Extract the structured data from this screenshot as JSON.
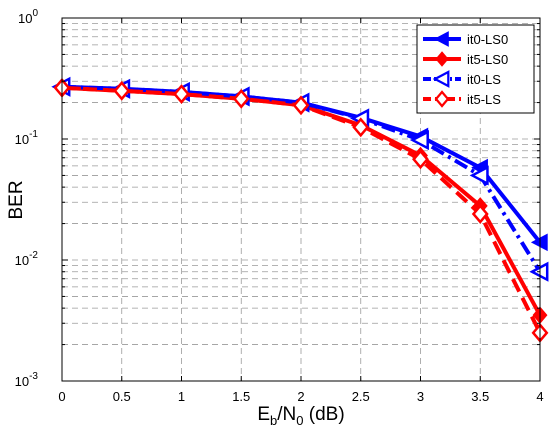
{
  "chart_data": {
    "type": "line",
    "title": "",
    "xlabel": {
      "base": "E",
      "sub1": "b",
      "mid": "/N",
      "sub2": "0",
      "tail": " (dB)"
    },
    "ylabel": "BER",
    "x": [
      0,
      0.5,
      1,
      1.5,
      2,
      2.5,
      3,
      3.5,
      4
    ],
    "xlim": [
      0,
      4
    ],
    "ylim": [
      0.001,
      1
    ],
    "yscale": "log",
    "grid": true,
    "legend_position": "top-right",
    "xticks": [
      "0",
      "0.5",
      "1",
      "1.5",
      "2",
      "2.5",
      "3",
      "3.5",
      "4"
    ],
    "yticks": [
      {
        "value": 1,
        "base": "10",
        "exp": "0"
      },
      {
        "value": 0.1,
        "base": "10",
        "exp": "-1"
      },
      {
        "value": 0.01,
        "base": "10",
        "exp": "-2"
      },
      {
        "value": 0.001,
        "base": "10",
        "exp": "-3"
      }
    ],
    "series": [
      {
        "name": "it0-LS0",
        "color": "#0000ff",
        "dash": "solid",
        "marker": "triangle-left",
        "values": [
          0.27,
          0.26,
          0.245,
          0.225,
          0.2,
          0.15,
          0.105,
          0.058,
          0.014
        ]
      },
      {
        "name": "it5-LS0",
        "color": "#ff0000",
        "dash": "solid",
        "marker": "diamond",
        "values": [
          0.265,
          0.25,
          0.235,
          0.215,
          0.19,
          0.13,
          0.073,
          0.028,
          0.0035
        ]
      },
      {
        "name": "it0-LS",
        "color": "#0000ff",
        "dash": "dashdot",
        "marker": "triangle-left",
        "values": [
          0.27,
          0.26,
          0.245,
          0.225,
          0.2,
          0.148,
          0.098,
          0.05,
          0.008
        ]
      },
      {
        "name": "it5-LS",
        "color": "#ff0000",
        "dash": "dashed",
        "marker": "diamond",
        "values": [
          0.265,
          0.25,
          0.235,
          0.215,
          0.19,
          0.125,
          0.068,
          0.024,
          0.0025
        ]
      }
    ]
  }
}
